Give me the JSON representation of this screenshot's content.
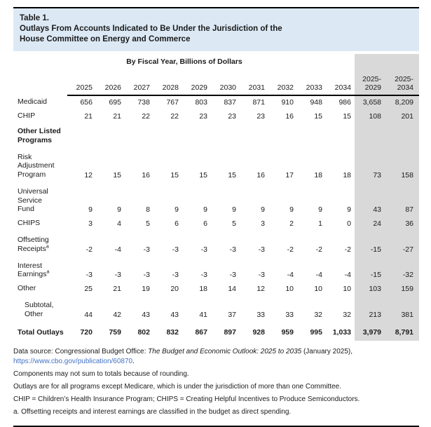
{
  "colors": {
    "header_bg": "#dce9f5",
    "band_bg": "#d9d9d9",
    "link_color": "#4472c4"
  },
  "header": {
    "table_number": "Table 1.",
    "title_line1": "Outlays From Accounts Indicated to Be Under the Jurisdiction of the",
    "title_line2": "House Committee on Energy and Commerce"
  },
  "caption": "By Fiscal Year, Billions of Dollars",
  "table": {
    "year_columns": [
      "2025",
      "2026",
      "2027",
      "2028",
      "2029",
      "2030",
      "2031",
      "2032",
      "2033",
      "2034"
    ],
    "summary_columns": [
      [
        "2025-",
        "2029"
      ],
      [
        "2025-",
        "2034"
      ]
    ],
    "rows": [
      {
        "label_lines": [
          "Medicaid"
        ],
        "style": "normal",
        "values": [
          "656",
          "695",
          "738",
          "767",
          "803",
          "837",
          "871",
          "910",
          "948",
          "986"
        ],
        "sums": [
          "3,658",
          "8,209"
        ]
      },
      {
        "label_lines": [
          "CHIP"
        ],
        "style": "normal",
        "values": [
          "21",
          "21",
          "22",
          "22",
          "23",
          "23",
          "23",
          "16",
          "15",
          "15"
        ],
        "sums": [
          "108",
          "201"
        ]
      },
      {
        "label_lines": [
          "Other Listed Programs"
        ],
        "style": "section",
        "values": [],
        "sums": []
      },
      {
        "label_lines": [
          "Risk Adjustment",
          "Program"
        ],
        "style": "normal",
        "values": [
          "12",
          "15",
          "16",
          "15",
          "15",
          "15",
          "16",
          "17",
          "18",
          "18"
        ],
        "sums": [
          "73",
          "158"
        ]
      },
      {
        "label_lines": [
          "Universal Service",
          "Fund"
        ],
        "style": "normal",
        "values": [
          "9",
          "9",
          "8",
          "9",
          "9",
          "9",
          "9",
          "9",
          "9",
          "9"
        ],
        "sums": [
          "43",
          "87"
        ]
      },
      {
        "label_lines": [
          "CHIPS"
        ],
        "style": "normal",
        "values": [
          "3",
          "4",
          "5",
          "6",
          "6",
          "5",
          "3",
          "2",
          "1",
          "0"
        ],
        "sums": [
          "24",
          "36"
        ]
      },
      {
        "label_lines": [
          "Offsetting",
          "Receipts"
        ],
        "sup": "a",
        "style": "normal",
        "values": [
          "-2",
          "-4",
          "-3",
          "-3",
          "-3",
          "-3",
          "-3",
          "-2",
          "-2",
          "-2"
        ],
        "sums": [
          "-15",
          "-27"
        ]
      },
      {
        "label_lines": [
          "Interest",
          "Earnings"
        ],
        "sup": "a",
        "style": "normal",
        "values": [
          "-3",
          "-3",
          "-3",
          "-3",
          "-3",
          "-3",
          "-3",
          "-4",
          "-4",
          "-4"
        ],
        "sums": [
          "-15",
          "-32"
        ]
      },
      {
        "label_lines": [
          "Other"
        ],
        "style": "normal",
        "values": [
          "25",
          "21",
          "19",
          "20",
          "18",
          "14",
          "12",
          "10",
          "10",
          "10"
        ],
        "sums": [
          "103",
          "159"
        ]
      },
      {
        "label_lines": [
          "Subtotal,",
          "Other"
        ],
        "style": "indent",
        "values": [
          "44",
          "42",
          "43",
          "43",
          "41",
          "37",
          "33",
          "33",
          "32",
          "32"
        ],
        "sums": [
          "213",
          "381"
        ]
      },
      {
        "label_lines": [
          "Total Outlays"
        ],
        "style": "total",
        "values": [
          "720",
          "759",
          "802",
          "832",
          "867",
          "897",
          "928",
          "959",
          "995",
          "1,033"
        ],
        "sums": [
          "3,979",
          "8,791"
        ]
      }
    ]
  },
  "footnotes": {
    "source_prefix": "Data source: Congressional Budget Office: ",
    "source_title": "The Budget and Economic Outlook: 2025 to 2035",
    "source_suffix": " (January 2025),",
    "source_link": "https://www.cbo.gov/publication/60870",
    "source_link_suffix": ".",
    "notes": [
      "Components may not sum to totals because of rounding.",
      "Outlays are for all programs except Medicare, which is under the jurisdiction of more than one Committee.",
      "CHIP = Children’s Health Insurance Program; CHIPS = Creating Helpful Incentives to Produce Semiconductors.",
      "a. Offsetting receipts and interest earnings are classified in the budget as direct spending."
    ]
  }
}
